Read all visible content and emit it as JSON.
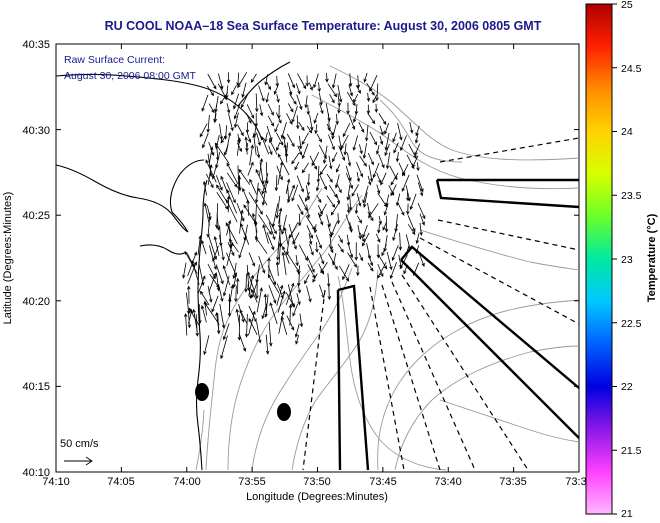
{
  "title": "RU COOL  NOAA–18  Sea Surface Temperature:  August 30, 2006 0805 GMT",
  "current_note": {
    "line1": "Raw Surface Current:",
    "line2": "August 30, 2006 08:00 GMT"
  },
  "scale_label": "50 cm/s",
  "xaxis": {
    "label": "Longitude (Degrees:Minutes)",
    "ticks": [
      "74:10",
      "74:05",
      "74:00",
      "73:55",
      "73:50",
      "73:45",
      "73:40",
      "73:35",
      "73:3"
    ]
  },
  "yaxis": {
    "label": "Latitude (Degrees:Minutes)",
    "ticks": [
      "40:35",
      "40:30",
      "40:25",
      "40:20",
      "40:15",
      "40:10"
    ]
  },
  "colorbar": {
    "label": "Temperature (°C)",
    "ticks": [
      "25",
      "24.5",
      "24",
      "23.5",
      "23",
      "22.5",
      "22",
      "21.5",
      "21"
    ],
    "colors": [
      "#b00000",
      "#ff2000",
      "#ff8c00",
      "#ffd200",
      "#d8ff00",
      "#6aff2a",
      "#00e9a0",
      "#00c8ff",
      "#0060ff",
      "#0000e0",
      "#8a18e8",
      "#ff40ff",
      "#ffb8ff"
    ]
  }
}
